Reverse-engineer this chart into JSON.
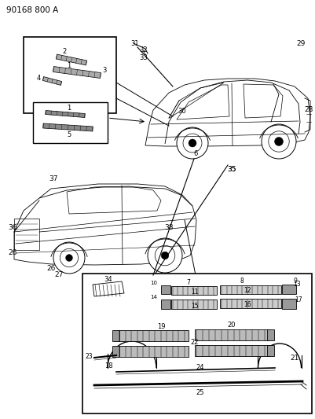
{
  "title": "90168 800 A",
  "bg_color": "#ffffff",
  "line_color": "#000000",
  "fig_width": 4.01,
  "fig_height": 5.33,
  "dpi": 100
}
